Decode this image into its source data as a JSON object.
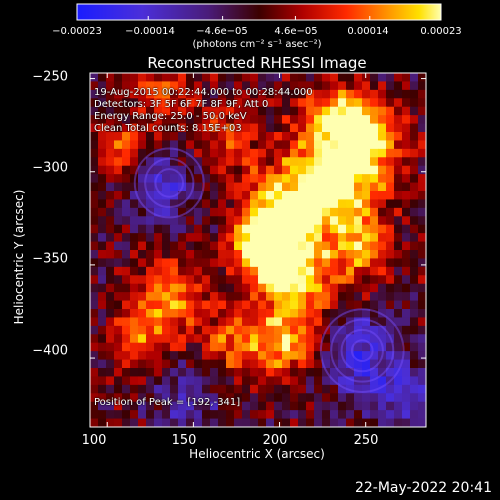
{
  "chart_data": {
    "type": "heatmap",
    "title": "Reconstructed RHESSI Image",
    "xlabel": "Heliocentric X (arcsec)",
    "ylabel": "Heliocentric Y (arcsec)",
    "xlim": [
      90,
      285
    ],
    "ylim": [
      -437,
      -247
    ],
    "x_ticks": [
      100,
      150,
      200,
      250
    ],
    "x_tick_labels": [
      "100",
      "150",
      "200",
      "250"
    ],
    "y_ticks": [
      -250,
      -300,
      -350,
      -400
    ],
    "y_tick_labels": [
      "−250",
      "−300",
      "−350",
      "−400"
    ],
    "colorbar": {
      "min": -0.00023,
      "max": 0.00023,
      "ticks": [
        -0.00023,
        -0.00014,
        -4.6e-05,
        4.6e-05,
        0.00014,
        0.00023
      ],
      "tick_labels": [
        "−0.00023",
        "−0.00014",
        "−4.6e−05",
        "4.6e−05",
        "0.00014",
        "0.00023"
      ],
      "units": "(photons cm⁻² s⁻¹ asec⁻²)"
    },
    "annotations": [
      "19-Aug-2015 00:22:44.000 to 00:28:44.000",
      "Detectors: 3F 5F 6F 7F 8F 9F, Att 0",
      "Energy Range: 25.0 - 50.0 keV",
      "Clean     Total counts: 8.15E+03"
    ],
    "peak_label": "Position of Peak = [192,-341]",
    "peak": [
      192,
      -341
    ],
    "timestamp": "22-May-2022 20:41"
  }
}
